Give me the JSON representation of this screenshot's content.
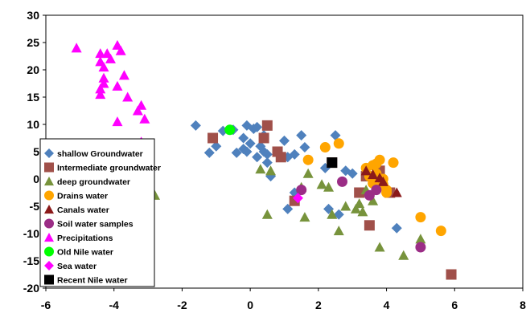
{
  "chart_data": {
    "type": "scatter",
    "title": "",
    "xlabel": "",
    "ylabel": "",
    "xlim": [
      -6,
      8
    ],
    "ylim": [
      -20,
      30
    ],
    "x_ticks": [
      "-6",
      "-4",
      "-2",
      "0",
      "2",
      "4",
      "6",
      "8"
    ],
    "y_ticks": [
      "30",
      "25",
      "20",
      "15",
      "10",
      "5",
      "0",
      "-5",
      "-10",
      "-15",
      "-20"
    ],
    "grid": false,
    "legend_position": "left",
    "series": [
      {
        "name": "shallow Groundwater",
        "marker": "diamond",
        "color": "#4F81BD",
        "points": [
          [
            -1.6,
            9.8
          ],
          [
            -1.2,
            4.8
          ],
          [
            -1.0,
            6.0
          ],
          [
            -0.8,
            8.8
          ],
          [
            -0.5,
            9.0
          ],
          [
            -0.4,
            4.8
          ],
          [
            -0.2,
            5.5
          ],
          [
            -0.1,
            5.0
          ],
          [
            0.0,
            6.5
          ],
          [
            0.1,
            9.2
          ],
          [
            0.2,
            4.0
          ],
          [
            0.3,
            6.0
          ],
          [
            0.4,
            8.0
          ],
          [
            0.5,
            3.0
          ],
          [
            0.5,
            4.5
          ],
          [
            0.6,
            0.5
          ],
          [
            0.8,
            5.0
          ],
          [
            1.0,
            7.0
          ],
          [
            1.1,
            4.0
          ],
          [
            1.3,
            4.5
          ],
          [
            1.5,
            8.0
          ],
          [
            1.6,
            5.8
          ],
          [
            0.2,
            9.5
          ],
          [
            -0.1,
            9.8
          ],
          [
            0.4,
            5.0
          ],
          [
            2.2,
            2.0
          ],
          [
            2.5,
            8.0
          ],
          [
            2.8,
            1.5
          ],
          [
            3.0,
            1.0
          ],
          [
            2.6,
            -6.5
          ],
          [
            1.3,
            -2.5
          ],
          [
            4.3,
            -9.0
          ],
          [
            1.1,
            -5.5
          ],
          [
            2.3,
            -5.5
          ],
          [
            -0.2,
            7.5
          ]
        ]
      },
      {
        "name": "Intermediate groundwater",
        "marker": "square",
        "color": "#A0504A",
        "points": [
          [
            -1.1,
            7.5
          ],
          [
            0.4,
            7.5
          ],
          [
            0.5,
            9.8
          ],
          [
            0.8,
            5.0
          ],
          [
            0.9,
            4.0
          ],
          [
            1.3,
            -4.0
          ],
          [
            2.4,
            3.0
          ],
          [
            3.2,
            -2.5
          ],
          [
            3.5,
            -8.5
          ],
          [
            3.8,
            1.5
          ],
          [
            4.1,
            -2.5
          ],
          [
            5.9,
            -17.5
          ],
          [
            3.7,
            -0.5
          ],
          [
            3.4,
            0.5
          ]
        ]
      },
      {
        "name": "deep groundwater",
        "marker": "triangle",
        "color": "#77933C",
        "points": [
          [
            -2.8,
            -3.0
          ],
          [
            0.3,
            1.8
          ],
          [
            0.5,
            -6.5
          ],
          [
            1.5,
            -1.5
          ],
          [
            1.6,
            -7.0
          ],
          [
            1.7,
            1.0
          ],
          [
            2.3,
            -1.5
          ],
          [
            2.4,
            -6.5
          ],
          [
            2.6,
            -9.5
          ],
          [
            2.8,
            -5.0
          ],
          [
            3.1,
            -5.5
          ],
          [
            3.3,
            -6.0
          ],
          [
            3.6,
            -4.0
          ],
          [
            3.8,
            -12.5
          ],
          [
            4.5,
            -14.0
          ],
          [
            5.0,
            -11.0
          ],
          [
            3.4,
            -2.0
          ],
          [
            2.1,
            -1.0
          ],
          [
            0.6,
            1.5
          ],
          [
            3.2,
            -4.5
          ]
        ]
      },
      {
        "name": "Drains water",
        "marker": "circle",
        "color": "#FFA500",
        "points": [
          [
            1.7,
            3.5
          ],
          [
            2.2,
            5.8
          ],
          [
            2.6,
            6.5
          ],
          [
            3.4,
            2.0
          ],
          [
            3.5,
            0.5
          ],
          [
            3.6,
            2.5
          ],
          [
            3.7,
            1.0
          ],
          [
            3.8,
            3.5
          ],
          [
            3.9,
            -1.0
          ],
          [
            4.0,
            -2.5
          ],
          [
            4.2,
            3.0
          ],
          [
            5.0,
            -7.0
          ],
          [
            5.6,
            -9.5
          ],
          [
            3.7,
            2.8
          ],
          [
            3.9,
            0.0
          ],
          [
            3.6,
            -0.8
          ],
          [
            4.0,
            -2.0
          ]
        ]
      },
      {
        "name": "Canals water",
        "marker": "triangle",
        "color": "#8B1A1A",
        "points": [
          [
            3.4,
            1.5
          ],
          [
            3.8,
            0.2
          ],
          [
            3.9,
            -0.5
          ],
          [
            4.3,
            -2.5
          ],
          [
            3.6,
            0.8
          ]
        ]
      },
      {
        "name": "Soil water samples",
        "marker": "circle",
        "color": "#9B2D86",
        "points": [
          [
            1.5,
            -2.0
          ],
          [
            2.7,
            -0.5
          ],
          [
            3.5,
            -3.0
          ],
          [
            3.7,
            -2.0
          ],
          [
            5.0,
            -12.5
          ]
        ]
      },
      {
        "name": "Precipitations",
        "marker": "triangle",
        "color": "#FF00FF",
        "points": [
          [
            -5.1,
            24.0
          ],
          [
            -4.4,
            23.0
          ],
          [
            -4.4,
            21.5
          ],
          [
            -4.3,
            20.5
          ],
          [
            -4.3,
            18.5
          ],
          [
            -4.4,
            16.5
          ],
          [
            -4.4,
            15.5
          ],
          [
            -4.2,
            23.0
          ],
          [
            -4.1,
            22.0
          ],
          [
            -3.9,
            24.5
          ],
          [
            -3.8,
            23.5
          ],
          [
            -3.7,
            19.0
          ],
          [
            -3.6,
            15.0
          ],
          [
            -3.9,
            10.5
          ],
          [
            -3.2,
            13.5
          ],
          [
            -3.1,
            11.0
          ],
          [
            -3.2,
            6.8
          ],
          [
            -3.3,
            12.5
          ],
          [
            -3.9,
            17.0
          ],
          [
            -4.3,
            17.5
          ]
        ]
      },
      {
        "name": "Old Nile water",
        "marker": "circle",
        "color": "#00FF00",
        "points": [
          [
            -0.6,
            9.0
          ]
        ]
      },
      {
        "name": "Sea water",
        "marker": "diamond",
        "color": "#FF00FF",
        "points": [
          [
            1.4,
            -3.5
          ]
        ]
      },
      {
        "name": "Recent Nile water",
        "marker": "square",
        "color": "#000000",
        "points": [
          [
            2.4,
            3.0
          ]
        ]
      }
    ]
  }
}
